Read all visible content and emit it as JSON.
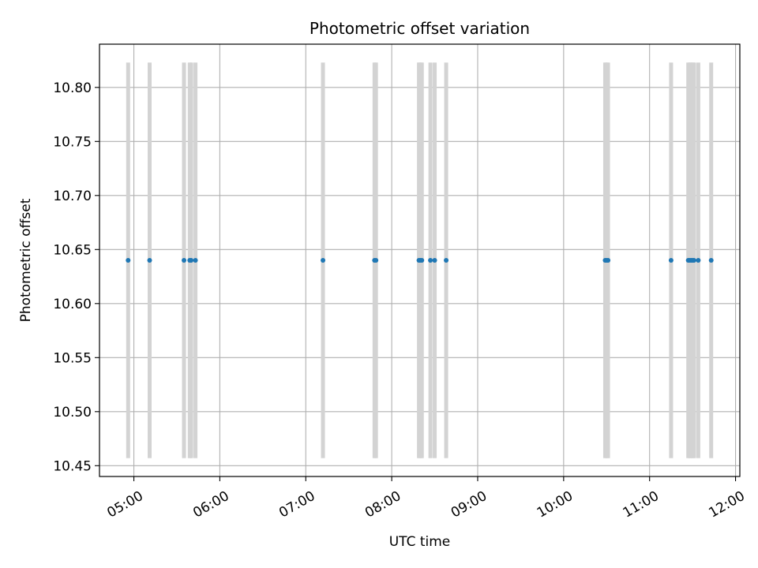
{
  "chart_data": {
    "type": "scatter",
    "title": "Photometric offset variation",
    "xlabel": "UTC time",
    "ylabel": "Photometric offset",
    "x_ticks": [
      "05:00",
      "06:00",
      "07:00",
      "08:00",
      "09:00",
      "10:00",
      "11:00",
      "12:00"
    ],
    "y_ticks": [
      "10.45",
      "10.50",
      "10.55",
      "10.60",
      "10.65",
      "10.70",
      "10.75",
      "10.80"
    ],
    "xlim": [
      "04:36",
      "12:03"
    ],
    "ylim": [
      10.44,
      10.84
    ],
    "grid": true,
    "band_range": [
      10.457,
      10.823
    ],
    "series": [
      {
        "color": "#1f77b4",
        "x": [
          "04:56",
          "05:11",
          "05:35",
          "05:39",
          "05:40",
          "05:43",
          "07:12",
          "07:48",
          "07:49",
          "08:19",
          "08:20",
          "08:21",
          "08:27",
          "08:30",
          "08:38",
          "10:29",
          "10:30",
          "10:31",
          "11:15",
          "11:27",
          "11:28",
          "11:29",
          "11:30",
          "11:31",
          "11:34",
          "11:43"
        ],
        "y": [
          10.64,
          10.64,
          10.64,
          10.64,
          10.64,
          10.64,
          10.64,
          10.64,
          10.64,
          10.64,
          10.64,
          10.64,
          10.64,
          10.64,
          10.64,
          10.64,
          10.64,
          10.64,
          10.64,
          10.64,
          10.64,
          10.64,
          10.64,
          10.64,
          10.64,
          10.64
        ]
      }
    ],
    "band_color": "#d3d3d3"
  }
}
